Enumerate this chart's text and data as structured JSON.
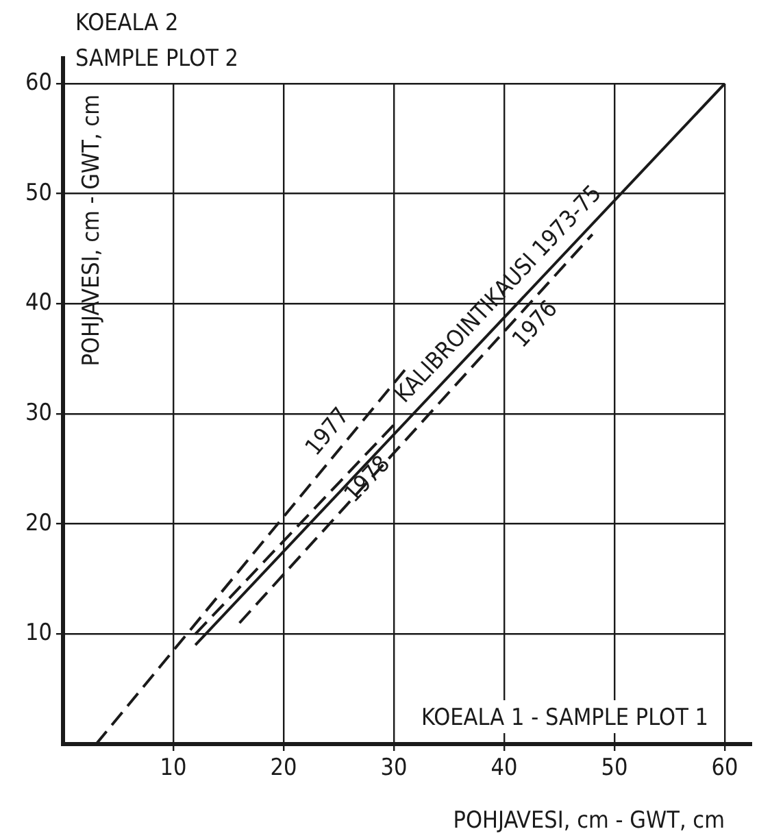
{
  "chart_data": {
    "type": "line",
    "title": "KOEALA 2",
    "subtitle": "SAMPLE PLOT 2",
    "xlabel": "POHJAVESI, cm - GWT, cm",
    "ylabel": "POHJAVESI, cm - GWT, cm",
    "annotations": [
      "KOEALA 1 - SAMPLE PLOT 1"
    ],
    "series": [
      {
        "name": "KALIBROINTIKAUSI 1973-75",
        "color": "#1a1a1a",
        "line_style": "solid",
        "x": [
          12,
          60
        ],
        "values": [
          9,
          60
        ]
      },
      {
        "name": "1976",
        "color": "#1a1a1a",
        "line_style": "dashed",
        "x": [
          16,
          48
        ],
        "values": [
          11,
          46.3
        ]
      },
      {
        "name": "1977",
        "color": "#1a1a1a",
        "line_style": "dashed",
        "x": [
          3,
          31
        ],
        "values": [
          0,
          34
        ]
      },
      {
        "name": "1978",
        "color": "#1a1a1a",
        "line_style": "dashed",
        "x": [
          12,
          30
        ],
        "values": [
          10,
          29
        ]
      }
    ],
    "xlim": [
      0,
      60
    ],
    "xticks": [
      10,
      20,
      30,
      40,
      50,
      60
    ],
    "ylim": [
      0,
      60
    ],
    "yticks": [
      10,
      20,
      30,
      40,
      50,
      60
    ],
    "grid": true,
    "legend": false,
    "marker": "none"
  }
}
